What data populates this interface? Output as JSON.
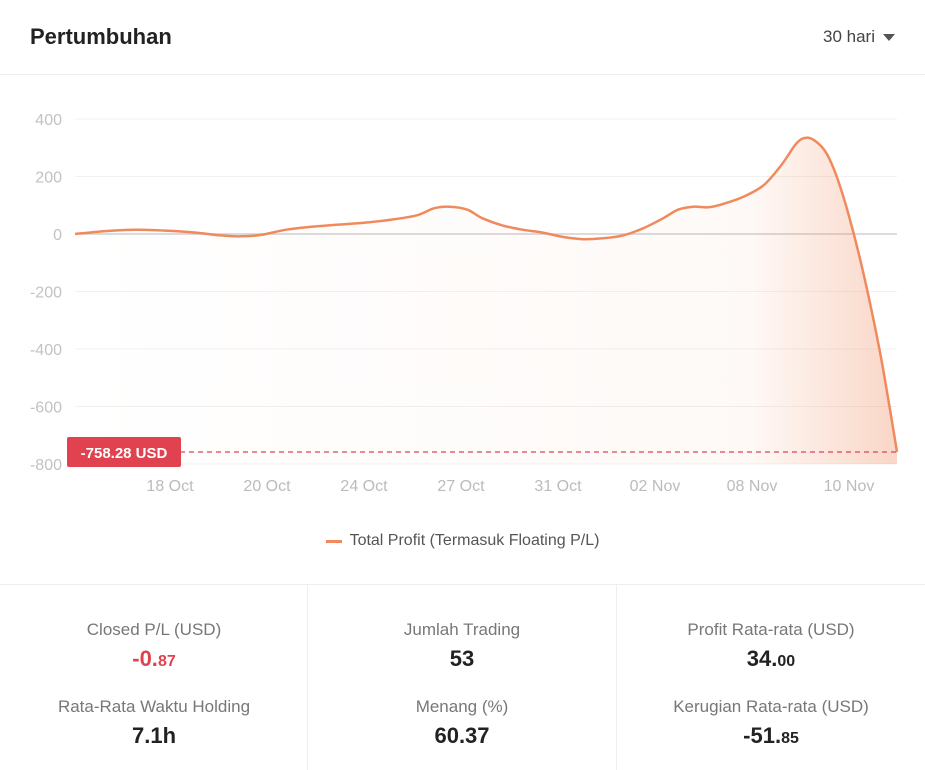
{
  "header": {
    "title": "Pertumbuhan",
    "range_label": "30 hari"
  },
  "chart_data": {
    "type": "line",
    "title": "",
    "xlabel": "",
    "ylabel": "",
    "ylim": [
      -800,
      400
    ],
    "yticks": [
      400,
      200,
      0,
      -200,
      -400,
      -600,
      -800
    ],
    "xtick_labels": [
      "18 Oct",
      "20 Oct",
      "24 Oct",
      "27 Oct",
      "31 Oct",
      "02 Nov",
      "08 Nov",
      "10 Nov"
    ],
    "legend": "bottom",
    "grid": true,
    "series": [
      {
        "name": "Total Profit (Termasuk Floating P/L)",
        "color": "#f08a5d",
        "points": [
          [
            0.0,
            0
          ],
          [
            0.6,
            10
          ],
          [
            1.2,
            15
          ],
          [
            1.8,
            12
          ],
          [
            2.4,
            5
          ],
          [
            2.9,
            -5
          ],
          [
            3.3,
            -8
          ],
          [
            3.7,
            -3
          ],
          [
            4.2,
            15
          ],
          [
            4.7,
            25
          ],
          [
            5.2,
            32
          ],
          [
            5.8,
            40
          ],
          [
            6.3,
            50
          ],
          [
            6.8,
            65
          ],
          [
            7.15,
            90
          ],
          [
            7.45,
            95
          ],
          [
            7.8,
            85
          ],
          [
            8.1,
            55
          ],
          [
            8.5,
            30
          ],
          [
            8.9,
            15
          ],
          [
            9.3,
            5
          ],
          [
            9.7,
            -10
          ],
          [
            10.1,
            -18
          ],
          [
            10.5,
            -15
          ],
          [
            10.9,
            -5
          ],
          [
            11.3,
            20
          ],
          [
            11.7,
            55
          ],
          [
            12.0,
            85
          ],
          [
            12.3,
            95
          ],
          [
            12.6,
            93
          ],
          [
            12.9,
            105
          ],
          [
            13.3,
            130
          ],
          [
            13.7,
            170
          ],
          [
            14.05,
            240
          ],
          [
            14.35,
            315
          ],
          [
            14.55,
            335
          ],
          [
            14.75,
            320
          ],
          [
            14.95,
            280
          ],
          [
            15.15,
            200
          ],
          [
            15.4,
            60
          ],
          [
            15.7,
            -150
          ],
          [
            16.0,
            -400
          ],
          [
            16.2,
            -600
          ],
          [
            16.35,
            -758.28
          ]
        ]
      }
    ],
    "current_value_label": "-758.28 USD",
    "current_value": -758.28
  },
  "stats": {
    "closed_pl": {
      "label": "Closed P/L (USD)",
      "int": "-0.",
      "dec": "87"
    },
    "jumlah_trading": {
      "label": "Jumlah Trading",
      "value": "53"
    },
    "profit_avg": {
      "label": "Profit Rata-rata (USD)",
      "int": "34.",
      "dec": "00"
    },
    "holding": {
      "label": "Rata-Rata Waktu Holding",
      "value": "7.1h"
    },
    "menang": {
      "label": "Menang (%)",
      "value": "60.37"
    },
    "loss_avg": {
      "label": "Kerugian Rata-rata (USD)",
      "int": "-51.",
      "dec": "85"
    }
  }
}
